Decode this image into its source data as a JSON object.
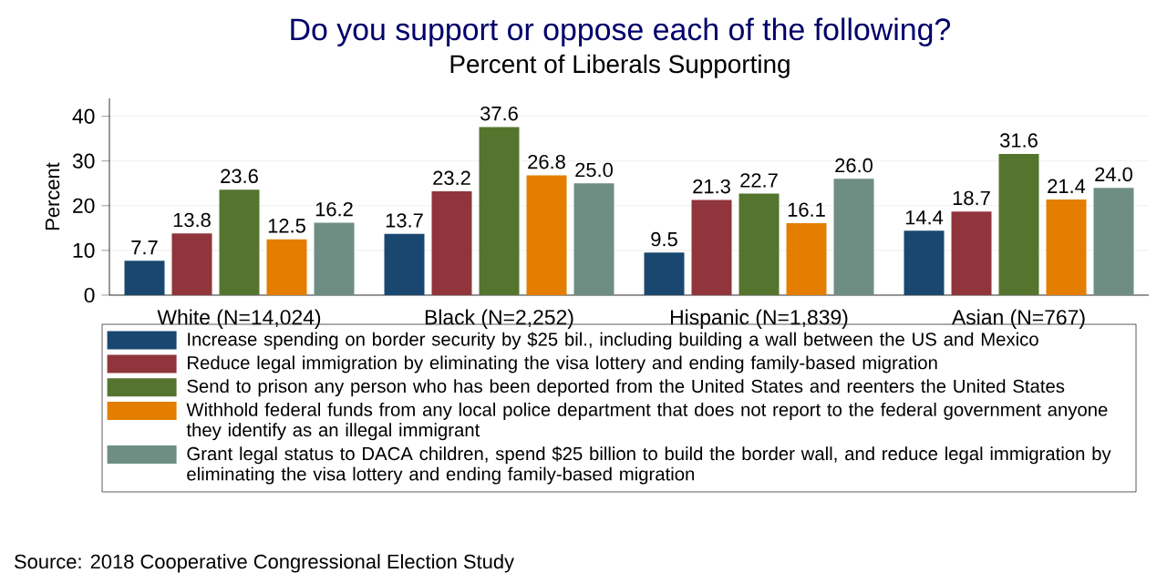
{
  "chart_data": {
    "type": "bar",
    "title": "Do you support or oppose each of the following?",
    "subtitle": "Percent of Liberals Supporting",
    "ylabel": "Percent",
    "categories": [
      "White (N=14,024)",
      "Black (N=2,252)",
      "Hispanic (N=1,839)",
      "Asian (N=767)"
    ],
    "series": [
      {
        "name": "Increase spending on border security by $25 bil., including building a wall between the US and Mexico",
        "color": "#1a476f",
        "values": [
          7.7,
          13.7,
          9.5,
          14.4
        ],
        "value_labels": [
          "7.7",
          "13.7",
          "9.5",
          "14.4"
        ]
      },
      {
        "name": "Reduce legal immigration by eliminating the visa lottery and ending family-based migration",
        "color": "#90353b",
        "values": [
          13.8,
          23.2,
          21.3,
          18.7
        ],
        "value_labels": [
          "13.8",
          "23.2",
          "21.3",
          "18.7"
        ]
      },
      {
        "name": "Send to prison any person who has been deported from the United States and reenters the United States",
        "color": "#55752f",
        "values": [
          23.6,
          37.6,
          22.7,
          31.6
        ],
        "value_labels": [
          "23.6",
          "37.6",
          "22.7",
          "31.6"
        ]
      },
      {
        "name": "Withhold federal funds from any local police department that does not report to the federal government anyone they identify as an illegal immigrant",
        "color": "#e37e00",
        "values": [
          12.5,
          26.8,
          16.1,
          21.4
        ],
        "value_labels": [
          "12.5",
          "26.8",
          "16.1",
          "21.4"
        ]
      },
      {
        "name": "Grant legal status to DACA children, spend $25 billion to build the border wall, and reduce legal immigration by eliminating the visa lottery and ending family-based migration",
        "color": "#6e8e84",
        "values": [
          16.2,
          25.0,
          26.0,
          24.0
        ],
        "value_labels": [
          "16.2",
          "25.0",
          "26.0",
          "24.0"
        ]
      }
    ],
    "ylim": [
      0,
      44
    ],
    "yticks": [
      0,
      10,
      20,
      30,
      40
    ],
    "grid": "y",
    "legend": "bottom",
    "annotations": [
      "Source: 2018 Cooperative Congressional Election Study"
    ]
  }
}
